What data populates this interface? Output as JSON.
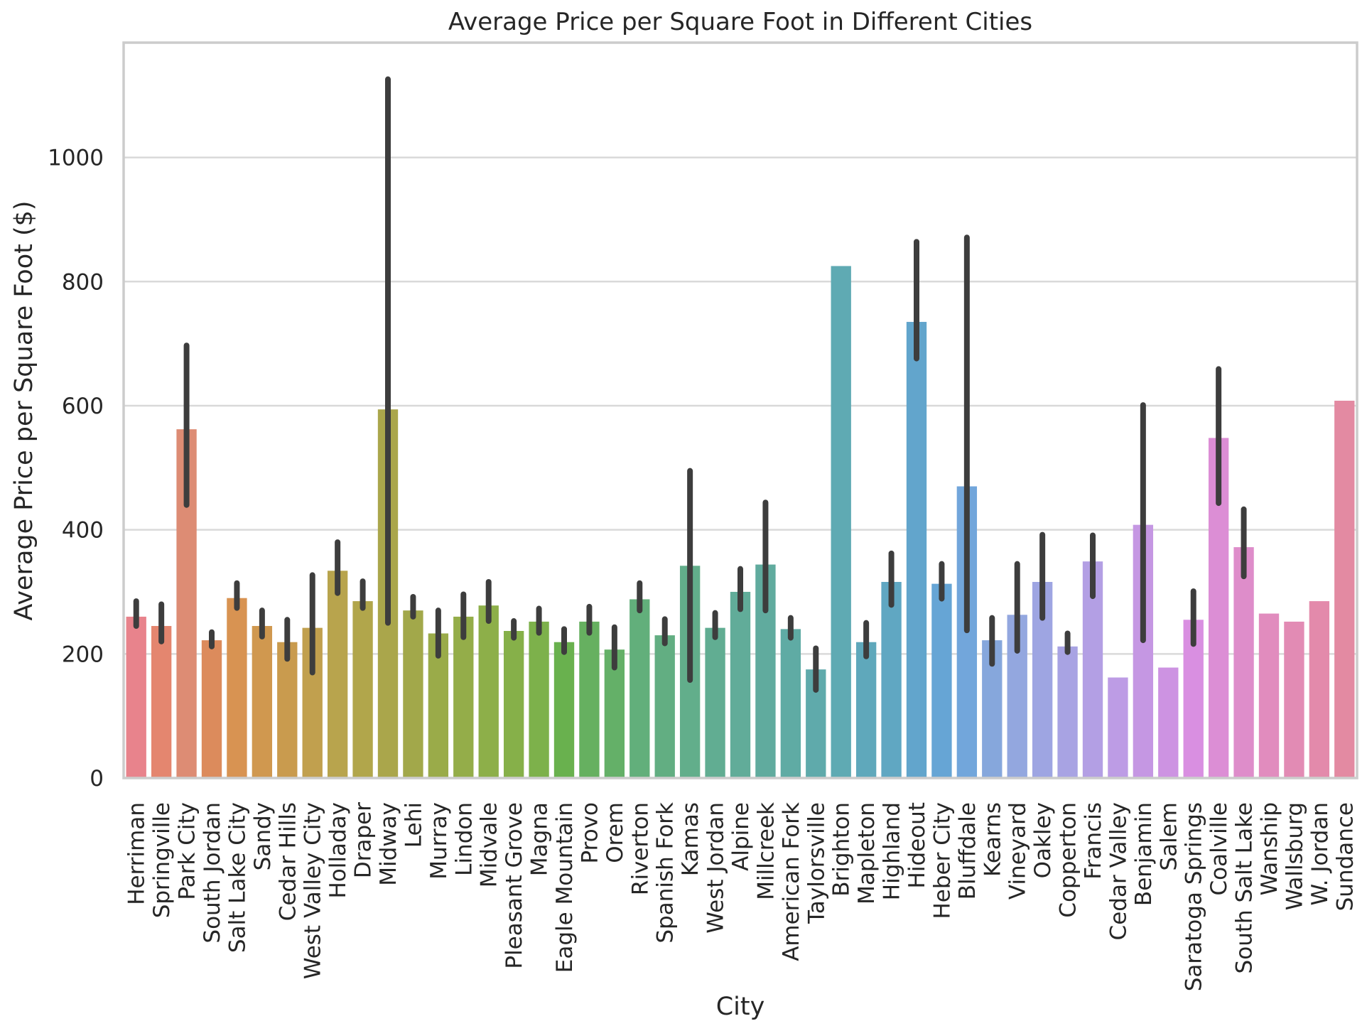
{
  "chart_data": {
    "type": "bar",
    "title": "Average Price per Square Foot in Different Cities",
    "xlabel": "City",
    "ylabel": "Average Price per Square Foot ($)",
    "ylim": [
      0,
      1185
    ],
    "yticks": [
      0,
      200,
      400,
      600,
      800,
      1000
    ],
    "grid": "horizontal",
    "error_bars": true,
    "categories": [
      "Herriman",
      "Springville",
      "Park City",
      "South Jordan",
      "Salt Lake City",
      "Sandy",
      "Cedar Hills",
      "West Valley City",
      "Holladay",
      "Draper",
      "Midway",
      "Lehi",
      "Murray",
      "Lindon",
      "Midvale",
      "Pleasant Grove",
      "Magna",
      "Eagle Mountain",
      "Provo",
      "Orem",
      "Riverton",
      "Spanish Fork",
      "Kamas",
      "West Jordan",
      "Alpine",
      "Millcreek",
      "American Fork",
      "Taylorsville",
      "Brighton",
      "Mapleton",
      "Highland",
      "Hideout",
      "Heber City",
      "Bluffdale",
      "Kearns",
      "Vineyard",
      "Oakley",
      "Copperton",
      "Francis",
      "Cedar Valley",
      "Benjamin",
      "Salem",
      "Saratoga Springs",
      "Coalville",
      "South Salt Lake",
      "Wanship",
      "Wallsburg",
      "W. Jordan",
      "Sundance"
    ],
    "values": [
      260,
      245,
      562,
      222,
      290,
      245,
      219,
      242,
      334,
      285,
      594,
      270,
      233,
      260,
      278,
      237,
      252,
      219,
      252,
      207,
      288,
      230,
      342,
      242,
      300,
      344,
      240,
      175,
      825,
      219,
      316,
      735,
      313,
      470,
      222,
      263,
      316,
      212,
      349,
      162,
      408,
      178,
      255,
      548,
      372,
      265,
      252,
      285,
      608
    ],
    "ci_low": [
      245,
      220,
      440,
      212,
      274,
      228,
      192,
      170,
      298,
      274,
      250,
      260,
      197,
      227,
      253,
      226,
      234,
      203,
      234,
      178,
      270,
      217,
      158,
      227,
      272,
      270,
      226,
      142,
      null,
      196,
      279,
      676,
      289,
      238,
      184,
      205,
      258,
      203,
      293,
      null,
      222,
      null,
      216,
      443,
      325,
      null,
      null,
      null,
      null
    ],
    "ci_high": [
      285,
      280,
      697,
      235,
      314,
      270,
      255,
      327,
      380,
      317,
      1126,
      292,
      270,
      296,
      316,
      253,
      273,
      240,
      276,
      243,
      314,
      256,
      495,
      266,
      337,
      444,
      258,
      209,
      null,
      250,
      362,
      864,
      345,
      871,
      258,
      345,
      392,
      233,
      391,
      null,
      601,
      null,
      301,
      659,
      433,
      null,
      null,
      null,
      null
    ],
    "colors": [
      "#e8838c",
      "#e4866f",
      "#dd8c74",
      "#dc8b5c",
      "#d89352",
      "#d0984f",
      "#c99b4e",
      "#c1a04e",
      "#b8a44d",
      "#b1a64b",
      "#aaa64b",
      "#a2a84a",
      "#9aab49",
      "#94ad49",
      "#8daf49",
      "#86b049",
      "#7db14b",
      "#69b14e",
      "#66b060",
      "#64b068",
      "#62af7b",
      "#62ae82",
      "#62ae8b",
      "#61ad92",
      "#61ac99",
      "#60ab9e",
      "#5faba4",
      "#5faaab",
      "#5faab3",
      "#5fa8bb",
      "#60a7c2",
      "#62a5cc",
      "#66a5d5",
      "#72a6db",
      "#86a7dc",
      "#93a7df",
      "#9ea5e2",
      "#a8a3e3",
      "#b39fe4",
      "#bd9ce5",
      "#c597e3",
      "#cd93e2",
      "#d98fe1",
      "#dc8ed5",
      "#de8dca",
      "#e18cbe",
      "#e28bb4",
      "#e38aab",
      "#e38aa2"
    ]
  }
}
